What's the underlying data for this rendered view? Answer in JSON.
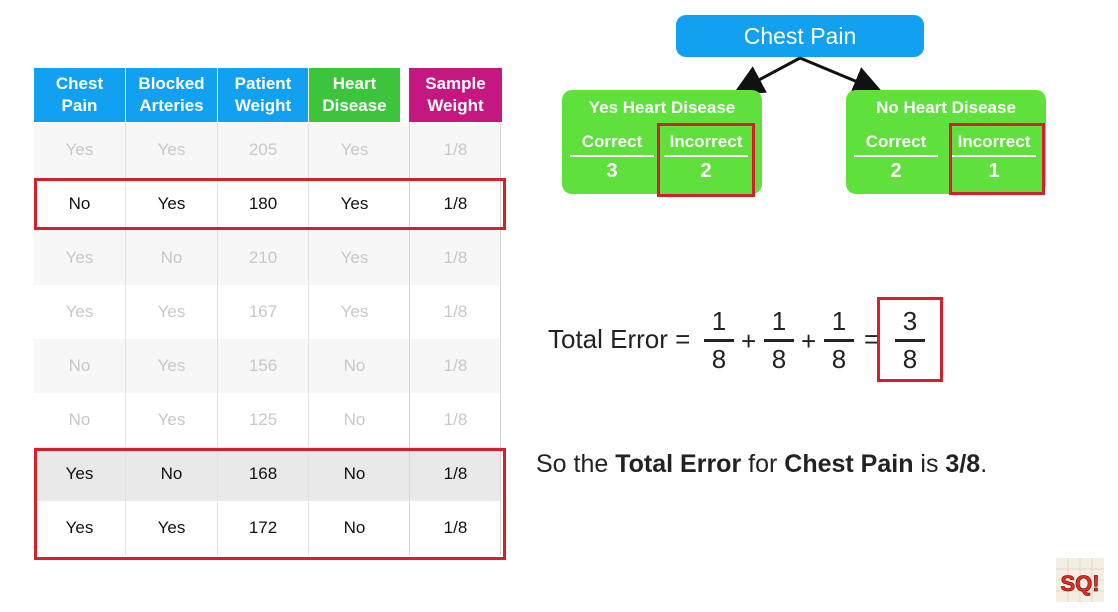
{
  "table": {
    "headers": [
      {
        "line1": "Chest",
        "line2": "Pain",
        "color": "#12a0f0"
      },
      {
        "line1": "Blocked",
        "line2": "Arteries",
        "color": "#12a0f0"
      },
      {
        "line1": "Patient",
        "line2": "Weight",
        "color": "#12a0f0"
      },
      {
        "line1": "Heart",
        "line2": "Disease",
        "color": "#3cc43c"
      },
      {
        "line1": "Sample",
        "line2": "Weight",
        "color": "#c4177f"
      }
    ],
    "rows": [
      {
        "cells": [
          "Yes",
          "Yes",
          "205",
          "Yes",
          "1/8"
        ],
        "highlighted": false
      },
      {
        "cells": [
          "No",
          "Yes",
          "180",
          "Yes",
          "1/8"
        ],
        "highlighted": true
      },
      {
        "cells": [
          "Yes",
          "No",
          "210",
          "Yes",
          "1/8"
        ],
        "highlighted": false
      },
      {
        "cells": [
          "Yes",
          "Yes",
          "167",
          "Yes",
          "1/8"
        ],
        "highlighted": false
      },
      {
        "cells": [
          "No",
          "Yes",
          "156",
          "No",
          "1/8"
        ],
        "highlighted": false
      },
      {
        "cells": [
          "No",
          "Yes",
          "125",
          "No",
          "1/8"
        ],
        "highlighted": false
      },
      {
        "cells": [
          "Yes",
          "No",
          "168",
          "No",
          "1/8"
        ],
        "highlighted": true
      },
      {
        "cells": [
          "Yes",
          "Yes",
          "172",
          "No",
          "1/8"
        ],
        "highlighted": true
      }
    ]
  },
  "tree": {
    "root": "Chest Pain",
    "left": {
      "title": "Yes Heart Disease",
      "correct_label": "Correct",
      "incorrect_label": "Incorrect",
      "correct": "3",
      "incorrect": "2"
    },
    "right": {
      "title": "No Heart Disease",
      "correct_label": "Correct",
      "incorrect_label": "Incorrect",
      "correct": "2",
      "incorrect": "1"
    }
  },
  "equation": {
    "label": "Total Error =",
    "terms": [
      {
        "num": "1",
        "den": "8"
      },
      {
        "num": "1",
        "den": "8"
      },
      {
        "num": "1",
        "den": "8"
      }
    ],
    "plus": "+",
    "equals": "=",
    "result": {
      "num": "3",
      "den": "8"
    }
  },
  "summary": {
    "p1": "So the ",
    "b1": "Total Error",
    "p2": " for ",
    "b2": "Chest Pain",
    "p3": " is ",
    "b3": "3/8",
    "p4": "."
  },
  "logo": {
    "text": "SQ!"
  }
}
